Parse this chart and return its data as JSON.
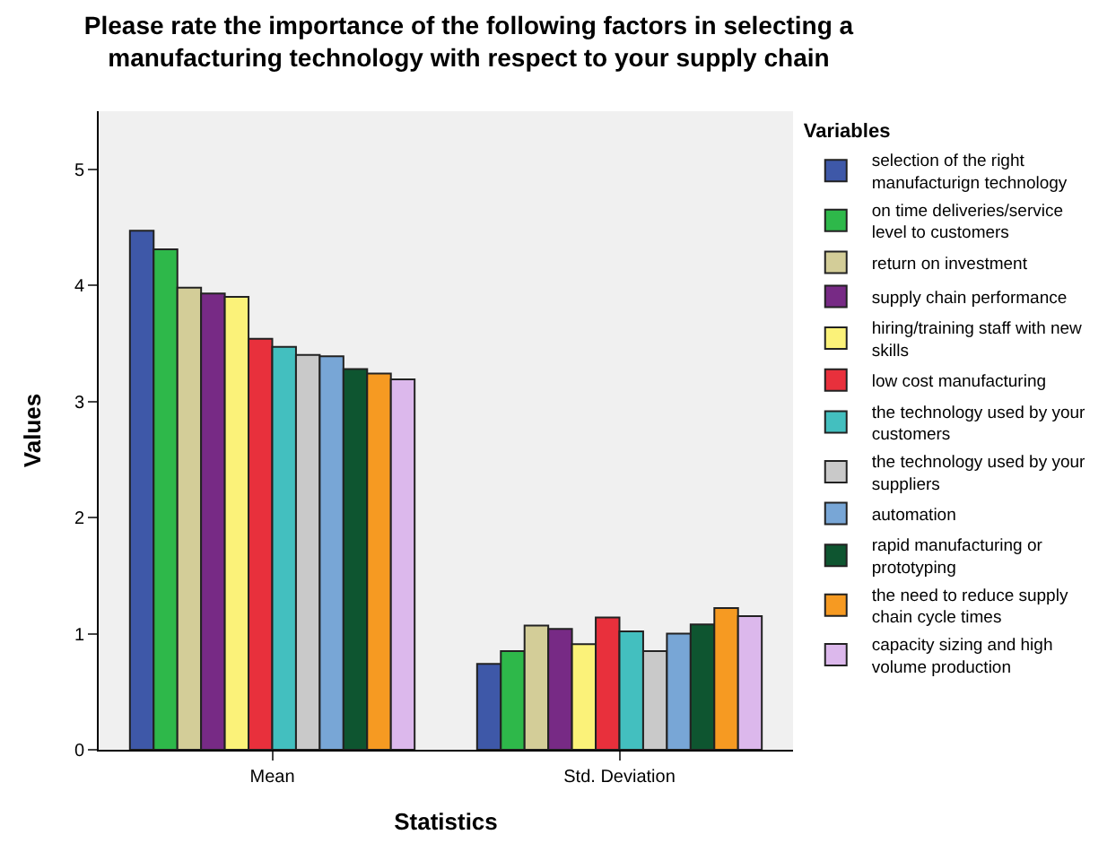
{
  "chart_data": {
    "type": "bar",
    "title": "Please rate the importance of the following factors in selecting a\nmanufacturing technology with respect to your supply chain",
    "xlabel": "Statistics",
    "ylabel": "Values",
    "legend_title": "Variables",
    "categories": [
      "Mean",
      "Std. Deviation"
    ],
    "series": [
      {
        "name": "selection of the right\nmanufacturign technology",
        "color": "#3e58a8",
        "values": [
          4.47,
          0.74
        ]
      },
      {
        "name": "on time deliveries/service\nlevel to customers",
        "color": "#2eb84a",
        "values": [
          4.31,
          0.85
        ]
      },
      {
        "name": "return on investment",
        "color": "#d3cd98",
        "values": [
          3.98,
          1.07
        ]
      },
      {
        "name": "supply chain performance",
        "color": "#772a85",
        "values": [
          3.93,
          1.04
        ]
      },
      {
        "name": "hiring/training staff with new\nskills",
        "color": "#fbf279",
        "values": [
          3.9,
          0.91
        ]
      },
      {
        "name": "low cost manufacturing",
        "color": "#e8303c",
        "values": [
          3.54,
          1.14
        ]
      },
      {
        "name": "the technology used by your\ncustomers",
        "color": "#43bfbf",
        "values": [
          3.47,
          1.02
        ]
      },
      {
        "name": "the technology used by your\nsuppliers",
        "color": "#c9c9c9",
        "values": [
          3.4,
          0.85
        ]
      },
      {
        "name": "automation",
        "color": "#78a6d6",
        "values": [
          3.39,
          1.0
        ]
      },
      {
        "name": "rapid manufacturing or\nprototyping",
        "color": "#0e5530",
        "values": [
          3.28,
          1.08
        ]
      },
      {
        "name": "the need to reduce supply\nchain cycle times",
        "color": "#f69a22",
        "values": [
          3.24,
          1.22
        ]
      },
      {
        "name": "capacity sizing and high\nvolume production",
        "color": "#dcb8ec",
        "values": [
          3.19,
          1.15
        ]
      }
    ],
    "ylim": [
      0,
      5.5
    ],
    "yticks": [
      0,
      1,
      2,
      3,
      4,
      5
    ],
    "grid": false,
    "legend": "right"
  }
}
